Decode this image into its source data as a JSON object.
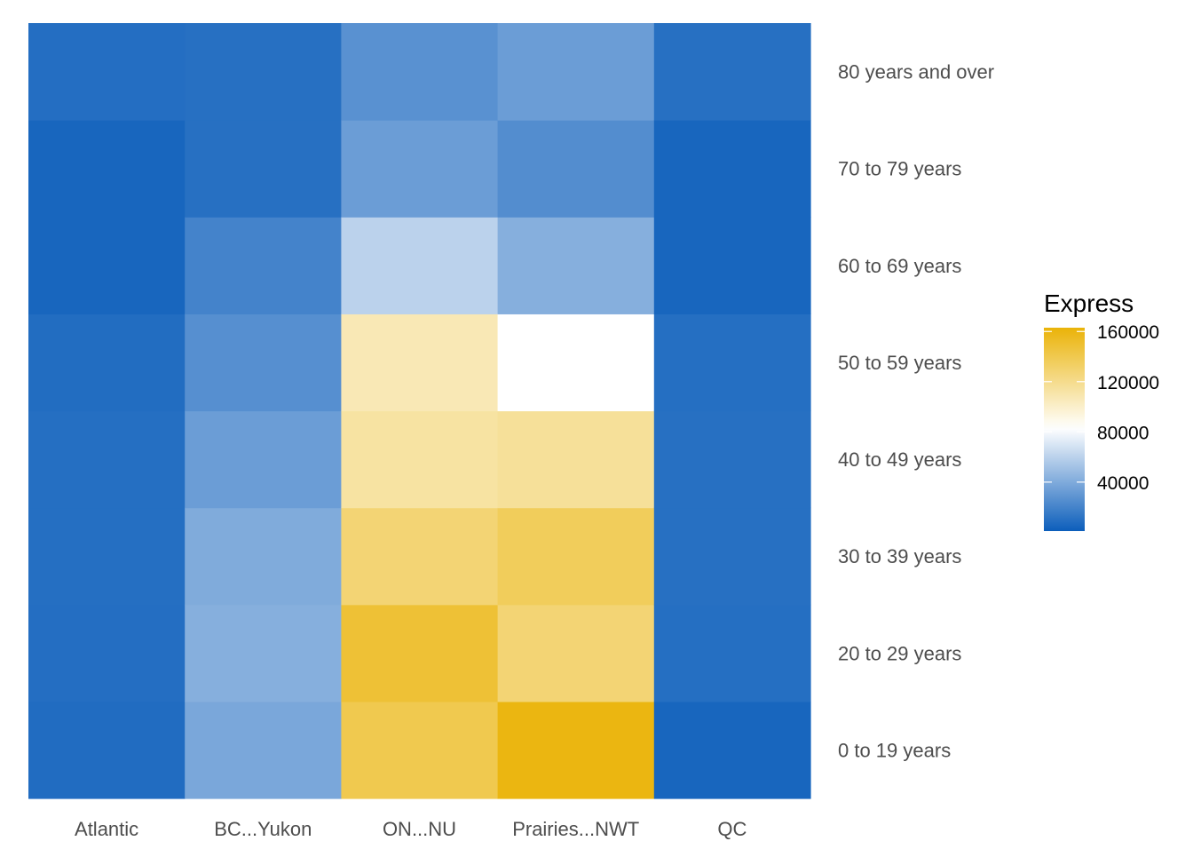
{
  "chart_data": {
    "type": "heatmap",
    "title": "",
    "xlabel": "",
    "ylabel": "",
    "x_categories": [
      "Atlantic",
      "BC...Yukon",
      "ON...NU",
      "Prairies...NWT",
      "QC"
    ],
    "y_categories": [
      "0 to 19 years",
      "20 to 29 years",
      "30 to 39 years",
      "40 to 49 years",
      "50 to 59 years",
      "60 to 69 years",
      "70 to 79 years",
      "80 years and over"
    ],
    "y_axis_position": "right",
    "values": [
      [
        8000,
        9000,
        9500,
        9500,
        8500,
        5000,
        5000,
        9000
      ],
      [
        38000,
        42000,
        40000,
        33000,
        26000,
        20000,
        10000,
        10000
      ],
      [
        140000,
        148000,
        128000,
        113000,
        107000,
        60000,
        33000,
        27000
      ],
      [
        160000,
        128000,
        136000,
        116000,
        83000,
        42000,
        25000,
        33000
      ],
      [
        5000,
        9500,
        10000,
        10000,
        9500,
        5000,
        5000,
        10000
      ]
    ],
    "legend": {
      "title": "Express",
      "position": "right",
      "breaks": [
        40000,
        80000,
        120000,
        160000
      ],
      "labels": [
        "40000",
        "80000",
        "120000",
        "160000"
      ],
      "range": [
        1000,
        163000
      ]
    },
    "colors": {
      "low": "#0c5ebb",
      "mid": "#ffffff",
      "high": "#eab308",
      "midpoint": 83000
    },
    "grid": false
  }
}
